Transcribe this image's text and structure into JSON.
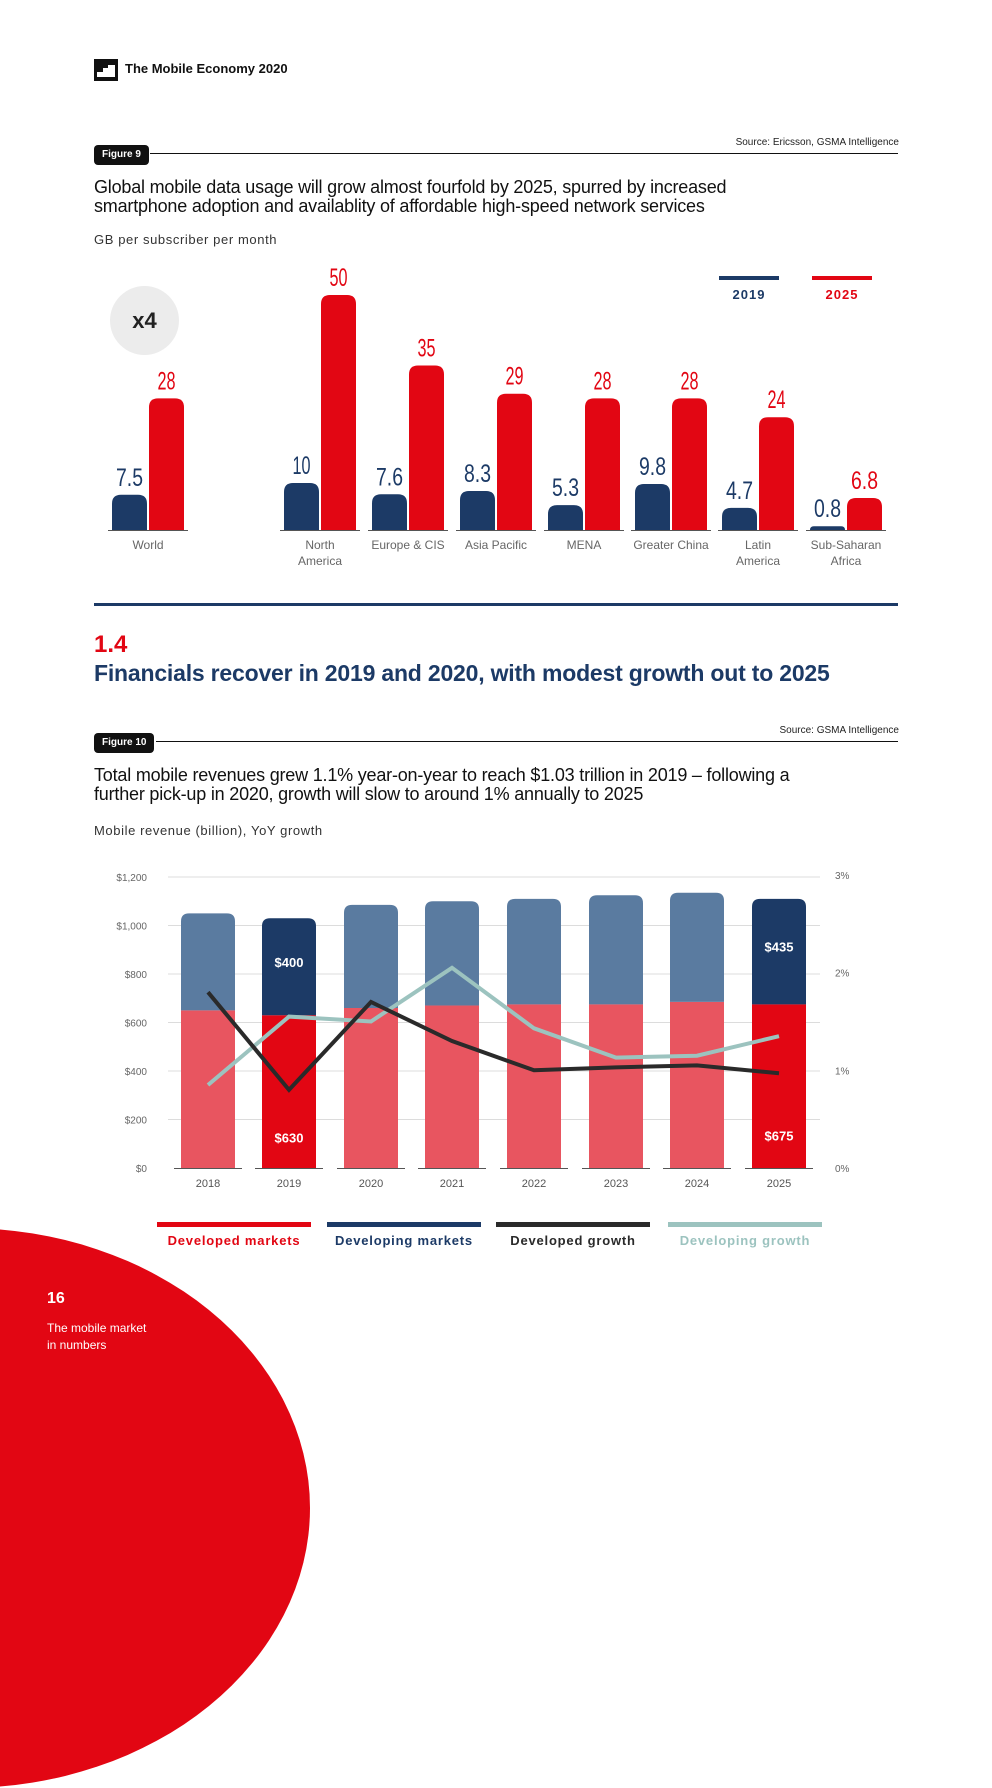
{
  "header": {
    "logo_icon": "building-steps-icon",
    "title": "The Mobile Economy 2020"
  },
  "figure9": {
    "label": "Figure 9",
    "source": "Source: Ericsson, GSMA Intelligence",
    "title_line1": "Global mobile data usage will grow almost fourfold by 2025, spurred by increased",
    "title_line2": "smartphone adoption and availablity of affordable high-speed network services",
    "unit": "GB per subscriber per month",
    "badge": "x4",
    "colors": {
      "y2019": "#1c3a66",
      "y2025": "#e20613"
    }
  },
  "section": {
    "number": "1.4",
    "title": "Financials recover in 2019 and 2020, with modest growth out to 2025"
  },
  "figure10": {
    "label": "Figure 10",
    "source": "Source: GSMA Intelligence",
    "title_line1": "Total mobile revenues grew 1.1% year-on-year to reach $1.03 trillion in 2019 – following a",
    "title_line2": "further pick-up in 2020, growth will slow to around 1% annually to 2025",
    "unit": "Mobile revenue (billion), YoY growth",
    "legend": [
      {
        "label": "Developed markets",
        "color": "#e20613",
        "text_color": "#e20613"
      },
      {
        "label": "Developing markets",
        "color": "#1c3a66",
        "text_color": "#1c3a66"
      },
      {
        "label": "Developed growth",
        "color": "#2a2a2a",
        "text_color": "#2a2a2a"
      },
      {
        "label": "Developing growth",
        "color": "#9cc3bf",
        "text_color": "#9cc3bf"
      }
    ]
  },
  "footer": {
    "page_number": "16",
    "section_line1": "The mobile market",
    "section_line2": "in numbers"
  },
  "chart_data": [
    {
      "type": "bar",
      "title": "Global mobile data usage will grow almost fourfold by 2025",
      "ylabel": "GB per subscriber per month",
      "categories": [
        "World",
        "North America",
        "Europe & CIS",
        "Asia Pacific",
        "MENA",
        "Greater China",
        "Latin America",
        "Sub-Saharan Africa"
      ],
      "category_lines": [
        [
          "World"
        ],
        [
          "North",
          "America"
        ],
        [
          "Europe & CIS"
        ],
        [
          "Asia Pacific"
        ],
        [
          "MENA"
        ],
        [
          "Greater China"
        ],
        [
          "Latin",
          "America"
        ],
        [
          "Sub-Saharan",
          "Africa"
        ]
      ],
      "series": [
        {
          "name": "2019",
          "values": [
            7.5,
            10,
            7.6,
            8.3,
            5.3,
            9.8,
            4.7,
            0.8
          ],
          "labels": [
            "7.5",
            "10",
            "7.6",
            "8.3",
            "5.3",
            "9.8",
            "4.7",
            "0.8"
          ],
          "color": "#1c3a66"
        },
        {
          "name": "2025",
          "values": [
            28,
            50,
            35,
            29,
            28,
            28,
            24,
            6.8
          ],
          "labels": [
            "28",
            "50",
            "35",
            "29",
            "28",
            "28",
            "24",
            "6.8"
          ],
          "color": "#e20613"
        }
      ],
      "ylim": [
        0,
        50
      ],
      "grid": false,
      "legend": "top-right"
    },
    {
      "type": "bar",
      "stacked": true,
      "title": "Mobile revenue (billion), YoY growth",
      "categories": [
        "2018",
        "2019",
        "2020",
        "2021",
        "2022",
        "2023",
        "2024",
        "2025"
      ],
      "series": [
        {
          "name": "Developed markets",
          "kind": "bar",
          "values": [
            650,
            630,
            660,
            670,
            675,
            675,
            685,
            675
          ],
          "color": "#e85560",
          "highlight_color": "#e20613"
        },
        {
          "name": "Developing markets",
          "kind": "bar",
          "values": [
            400,
            400,
            425,
            430,
            435,
            450,
            450,
            435
          ],
          "color": "#5a7ba0",
          "highlight_color": "#1c3a66"
        },
        {
          "name": "Developed growth",
          "kind": "line",
          "axis": "right",
          "values": [
            1.8,
            0.8,
            1.7,
            1.3,
            1.0,
            1.03,
            1.05,
            0.97
          ],
          "color": "#2a2a2a"
        },
        {
          "name": "Developing growth",
          "kind": "line",
          "axis": "right",
          "values": [
            0.85,
            1.55,
            1.5,
            2.05,
            1.43,
            1.13,
            1.15,
            1.35
          ],
          "color": "#9cc3bf"
        }
      ],
      "highlighted_categories": [
        "2019",
        "2025"
      ],
      "data_labels": [
        {
          "category": "2019",
          "series": "Developing markets",
          "text": "$400"
        },
        {
          "category": "2019",
          "series": "Developed markets",
          "text": "$630"
        },
        {
          "category": "2025",
          "series": "Developing markets",
          "text": "$435"
        },
        {
          "category": "2025",
          "series": "Developed markets",
          "text": "$675"
        }
      ],
      "ylim": [
        0,
        1200
      ],
      "yticks": [
        "$0",
        "$200",
        "$400",
        "$600",
        "$800",
        "$1,000",
        "$1,200"
      ],
      "y2lim": [
        0,
        3
      ],
      "y2ticks": [
        "0%",
        "1%",
        "2%",
        "3%"
      ],
      "grid": true,
      "legend": "bottom"
    }
  ]
}
